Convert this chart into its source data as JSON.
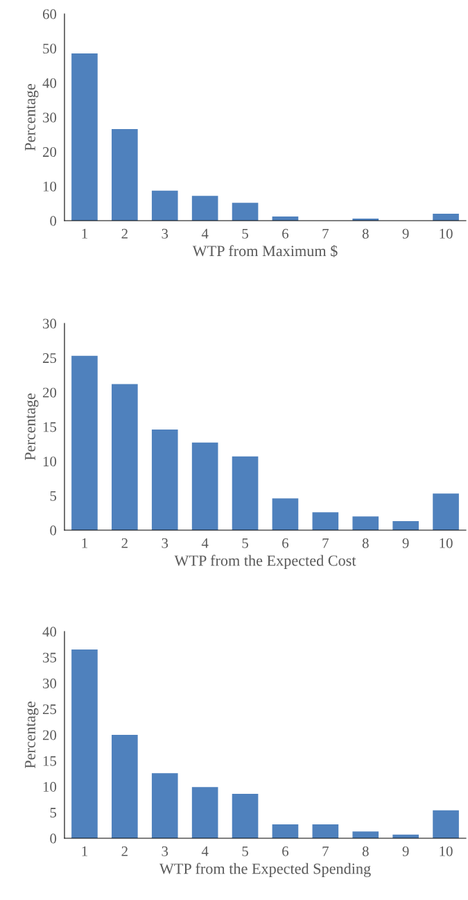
{
  "chart_data": [
    {
      "type": "bar",
      "xlabel": "WTP from Maximum $",
      "ylabel": "Percentage",
      "categories": [
        "1",
        "2",
        "3",
        "4",
        "5",
        "6",
        "7",
        "8",
        "9",
        "10"
      ],
      "color": "#4f81bd",
      "values": [
        48.5,
        26.6,
        8.7,
        7.2,
        5.2,
        1.2,
        0,
        0.6,
        0,
        2.0
      ],
      "ylim": [
        0,
        60
      ],
      "yticks": [
        0,
        10,
        20,
        30,
        40,
        50,
        60
      ],
      "grid": false,
      "legend": false
    },
    {
      "type": "bar",
      "xlabel": "WTP from the Expected Cost",
      "ylabel": "Percentage",
      "categories": [
        "1",
        "2",
        "3",
        "4",
        "5",
        "6",
        "7",
        "8",
        "9",
        "10"
      ],
      "color": "#4f81bd",
      "values": [
        25.3,
        21.2,
        14.6,
        12.7,
        10.7,
        4.6,
        2.6,
        2.0,
        1.3,
        5.3
      ],
      "ylim": [
        0,
        30
      ],
      "yticks": [
        0,
        5,
        10,
        15,
        20,
        25,
        30
      ],
      "grid": false,
      "legend": false
    },
    {
      "type": "bar",
      "xlabel": "WTP from the Expected Spending",
      "ylabel": "Percentage",
      "categories": [
        "1",
        "2",
        "3",
        "4",
        "5",
        "6",
        "7",
        "8",
        "9",
        "10"
      ],
      "color": "#4f81bd",
      "values": [
        36.5,
        20.0,
        12.6,
        9.9,
        8.6,
        2.7,
        2.7,
        1.3,
        0.7,
        5.4
      ],
      "ylim": [
        0,
        40
      ],
      "yticks": [
        0,
        5,
        10,
        15,
        20,
        25,
        30,
        35,
        40
      ],
      "grid": false,
      "legend": false
    }
  ]
}
